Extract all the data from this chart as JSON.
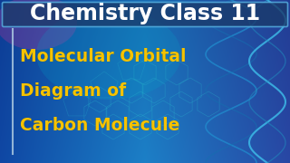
{
  "title_text": "Chemistry Class 11",
  "title_color": "#ffffff",
  "title_box_facecolor": "#1a3d6e",
  "title_box_edgecolor": "#5ab8e8",
  "title_fontsize": 17,
  "subtitle_lines": [
    "Molecular Orbital",
    "Diagram of",
    "Carbon Molecule"
  ],
  "subtitle_color": "#f5c200",
  "subtitle_fontsize": 13.5,
  "vline_color": "#aac8e0",
  "bg_mid_color": "#1565c0",
  "fig_width": 3.2,
  "fig_height": 1.8,
  "dpi": 100
}
